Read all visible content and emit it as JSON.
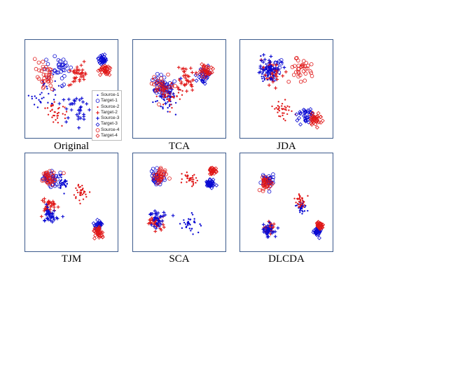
{
  "colors": {
    "source": "#0a0ad2",
    "target": "#e01818",
    "frame": "#3c5a8c"
  },
  "legend_entries": [
    {
      "label": "Source-1",
      "color": "#0a0ad2",
      "marker": "dot"
    },
    {
      "label": "Target-1",
      "color": "#0a0ad2",
      "marker": "circle"
    },
    {
      "label": "Source-2",
      "color": "#e01818",
      "marker": "dot"
    },
    {
      "label": "Target-2",
      "color": "#e01818",
      "marker": "plus"
    },
    {
      "label": "Source-3",
      "color": "#0a0ad2",
      "marker": "plus"
    },
    {
      "label": "Target-3",
      "color": "#0a0ad2",
      "marker": "diamond"
    },
    {
      "label": "Source-4",
      "color": "#e01818",
      "marker": "circle"
    },
    {
      "label": "Target-4",
      "color": "#e01818",
      "marker": "diamond"
    }
  ],
  "chart_data": [
    {
      "type": "scatter",
      "title": "Original",
      "axes": "none",
      "grid": false,
      "legend": "right",
      "clusters": [
        {
          "x": 0.22,
          "y": 0.55,
          "s": 0.18,
          "color": "#0a0ad2",
          "marker": "dot"
        },
        {
          "x": 0.35,
          "y": 0.3,
          "s": 0.16,
          "color": "#0a0ad2",
          "marker": "circle"
        },
        {
          "x": 0.3,
          "y": 0.72,
          "s": 0.12,
          "color": "#e01818",
          "marker": "dot"
        },
        {
          "x": 0.55,
          "y": 0.35,
          "s": 0.12,
          "color": "#e01818",
          "marker": "plus"
        },
        {
          "x": 0.55,
          "y": 0.7,
          "s": 0.15,
          "color": "#0a0ad2",
          "marker": "plus"
        },
        {
          "x": 0.83,
          "y": 0.2,
          "s": 0.06,
          "color": "#0a0ad2",
          "marker": "diamond"
        },
        {
          "x": 0.22,
          "y": 0.35,
          "s": 0.15,
          "color": "#e01818",
          "marker": "circle"
        },
        {
          "x": 0.85,
          "y": 0.3,
          "s": 0.06,
          "color": "#e01818",
          "marker": "diamond"
        }
      ]
    },
    {
      "type": "scatter",
      "title": "TCA",
      "axes": "none",
      "grid": false,
      "clusters": [
        {
          "x": 0.35,
          "y": 0.6,
          "s": 0.14,
          "color": "#0a0ad2",
          "marker": "dot"
        },
        {
          "x": 0.3,
          "y": 0.45,
          "s": 0.12,
          "color": "#0a0ad2",
          "marker": "circle"
        },
        {
          "x": 0.4,
          "y": 0.55,
          "s": 0.13,
          "color": "#e01818",
          "marker": "dot"
        },
        {
          "x": 0.55,
          "y": 0.4,
          "s": 0.12,
          "color": "#e01818",
          "marker": "plus"
        },
        {
          "x": 0.35,
          "y": 0.5,
          "s": 0.12,
          "color": "#0a0ad2",
          "marker": "plus"
        },
        {
          "x": 0.75,
          "y": 0.35,
          "s": 0.08,
          "color": "#0a0ad2",
          "marker": "diamond"
        },
        {
          "x": 0.3,
          "y": 0.45,
          "s": 0.12,
          "color": "#e01818",
          "marker": "circle"
        },
        {
          "x": 0.78,
          "y": 0.32,
          "s": 0.08,
          "color": "#e01818",
          "marker": "diamond"
        }
      ]
    },
    {
      "type": "scatter",
      "title": "JDA",
      "axes": "none",
      "grid": false,
      "clusters": [
        {
          "x": 0.3,
          "y": 0.35,
          "s": 0.12,
          "color": "#0a0ad2",
          "marker": "dot"
        },
        {
          "x": 0.35,
          "y": 0.3,
          "s": 0.12,
          "color": "#0a0ad2",
          "marker": "circle"
        },
        {
          "x": 0.45,
          "y": 0.7,
          "s": 0.1,
          "color": "#e01818",
          "marker": "dot"
        },
        {
          "x": 0.35,
          "y": 0.35,
          "s": 0.13,
          "color": "#e01818",
          "marker": "plus"
        },
        {
          "x": 0.3,
          "y": 0.28,
          "s": 0.12,
          "color": "#0a0ad2",
          "marker": "plus"
        },
        {
          "x": 0.7,
          "y": 0.75,
          "s": 0.08,
          "color": "#0a0ad2",
          "marker": "diamond"
        },
        {
          "x": 0.65,
          "y": 0.3,
          "s": 0.12,
          "color": "#e01818",
          "marker": "circle"
        },
        {
          "x": 0.8,
          "y": 0.8,
          "s": 0.07,
          "color": "#e01818",
          "marker": "diamond"
        }
      ]
    },
    {
      "type": "scatter",
      "title": "TJM",
      "axes": "none",
      "grid": false,
      "clusters": [
        {
          "x": 0.4,
          "y": 0.3,
          "s": 0.08,
          "color": "#0a0ad2",
          "marker": "dot"
        },
        {
          "x": 0.28,
          "y": 0.25,
          "s": 0.1,
          "color": "#0a0ad2",
          "marker": "circle"
        },
        {
          "x": 0.6,
          "y": 0.4,
          "s": 0.08,
          "color": "#e01818",
          "marker": "dot"
        },
        {
          "x": 0.25,
          "y": 0.55,
          "s": 0.1,
          "color": "#e01818",
          "marker": "plus"
        },
        {
          "x": 0.25,
          "y": 0.62,
          "s": 0.1,
          "color": "#0a0ad2",
          "marker": "plus"
        },
        {
          "x": 0.78,
          "y": 0.72,
          "s": 0.06,
          "color": "#0a0ad2",
          "marker": "diamond"
        },
        {
          "x": 0.25,
          "y": 0.25,
          "s": 0.1,
          "color": "#e01818",
          "marker": "circle"
        },
        {
          "x": 0.78,
          "y": 0.8,
          "s": 0.06,
          "color": "#e01818",
          "marker": "diamond"
        }
      ]
    },
    {
      "type": "scatter",
      "title": "SCA",
      "axes": "none",
      "grid": false,
      "clusters": [
        {
          "x": 0.6,
          "y": 0.7,
          "s": 0.1,
          "color": "#0a0ad2",
          "marker": "dot"
        },
        {
          "x": 0.25,
          "y": 0.25,
          "s": 0.1,
          "color": "#0a0ad2",
          "marker": "circle"
        },
        {
          "x": 0.6,
          "y": 0.25,
          "s": 0.08,
          "color": "#e01818",
          "marker": "dot"
        },
        {
          "x": 0.25,
          "y": 0.7,
          "s": 0.09,
          "color": "#e01818",
          "marker": "plus"
        },
        {
          "x": 0.25,
          "y": 0.65,
          "s": 0.1,
          "color": "#0a0ad2",
          "marker": "plus"
        },
        {
          "x": 0.82,
          "y": 0.3,
          "s": 0.05,
          "color": "#0a0ad2",
          "marker": "diamond"
        },
        {
          "x": 0.3,
          "y": 0.22,
          "s": 0.09,
          "color": "#e01818",
          "marker": "circle"
        },
        {
          "x": 0.85,
          "y": 0.18,
          "s": 0.04,
          "color": "#e01818",
          "marker": "diamond"
        }
      ]
    },
    {
      "type": "scatter",
      "title": "DLCDA",
      "axes": "none",
      "grid": false,
      "clusters": [
        {
          "x": 0.65,
          "y": 0.55,
          "s": 0.07,
          "color": "#0a0ad2",
          "marker": "dot"
        },
        {
          "x": 0.3,
          "y": 0.28,
          "s": 0.08,
          "color": "#0a0ad2",
          "marker": "circle"
        },
        {
          "x": 0.65,
          "y": 0.48,
          "s": 0.07,
          "color": "#e01818",
          "marker": "dot"
        },
        {
          "x": 0.3,
          "y": 0.75,
          "s": 0.07,
          "color": "#e01818",
          "marker": "plus"
        },
        {
          "x": 0.3,
          "y": 0.78,
          "s": 0.07,
          "color": "#0a0ad2",
          "marker": "plus"
        },
        {
          "x": 0.82,
          "y": 0.78,
          "s": 0.04,
          "color": "#0a0ad2",
          "marker": "diamond"
        },
        {
          "x": 0.28,
          "y": 0.3,
          "s": 0.08,
          "color": "#e01818",
          "marker": "circle"
        },
        {
          "x": 0.85,
          "y": 0.72,
          "s": 0.04,
          "color": "#e01818",
          "marker": "diamond"
        }
      ]
    }
  ]
}
